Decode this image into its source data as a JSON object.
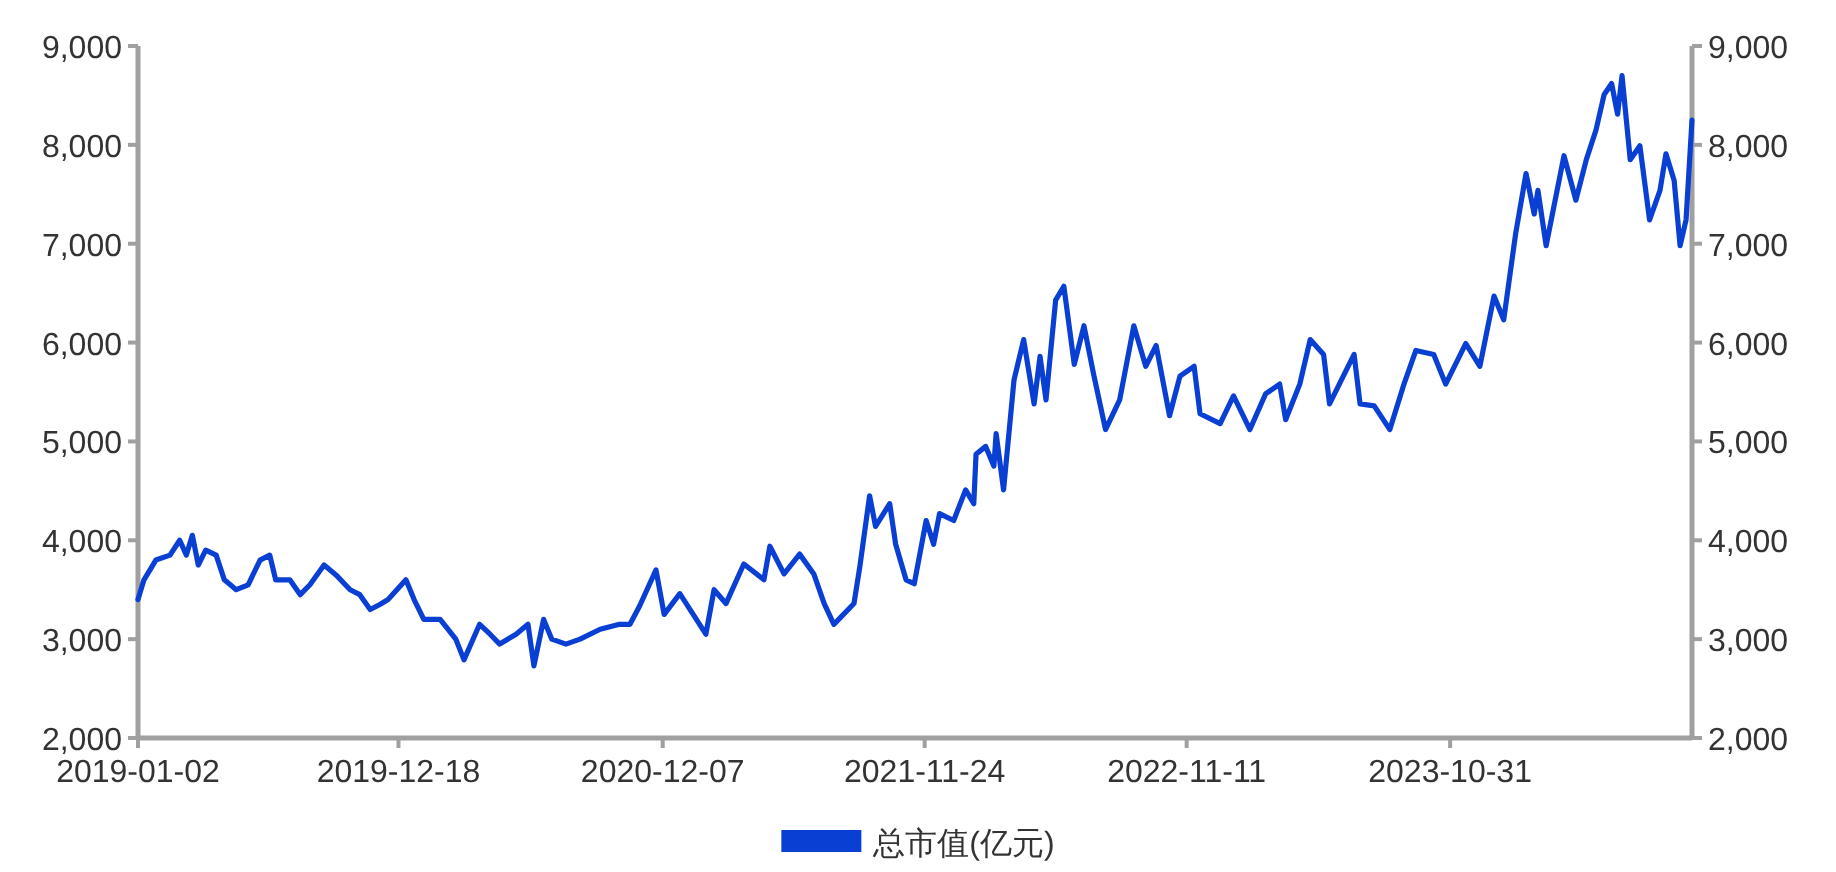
{
  "chart_data": {
    "type": "line",
    "legend": "bottom",
    "grid": false,
    "marker": "none",
    "line_style": "solid",
    "xlim": [
      "2019-01-02",
      "2024-09-20"
    ],
    "xticks": [
      "2019-01-02",
      "2019-12-18",
      "2020-12-07",
      "2021-11-24",
      "2022-11-11",
      "2023-10-31"
    ],
    "ylim": [
      2000,
      9000
    ],
    "yticks": [
      {
        "value": 2000,
        "label": "2,000"
      },
      {
        "value": 3000,
        "label": "3,000"
      },
      {
        "value": 4000,
        "label": "4,000"
      },
      {
        "value": 5000,
        "label": "5,000"
      },
      {
        "value": 6000,
        "label": "6,000"
      },
      {
        "value": 7000,
        "label": "7,000"
      },
      {
        "value": 8000,
        "label": "8,000"
      },
      {
        "value": 9000,
        "label": "9,000"
      }
    ],
    "y2lim": [
      2000,
      9000
    ],
    "y2ticks": [
      {
        "value": 2000,
        "label": "2,000"
      },
      {
        "value": 3000,
        "label": "3,000"
      },
      {
        "value": 4000,
        "label": "4,000"
      },
      {
        "value": 5000,
        "label": "5,000"
      },
      {
        "value": 6000,
        "label": "6,000"
      },
      {
        "value": 7000,
        "label": "7,000"
      },
      {
        "value": 8000,
        "label": "8,000"
      },
      {
        "value": 9000,
        "label": "9,000"
      }
    ],
    "series": [
      {
        "name": "总市值(亿元)",
        "color": "#0a3fd4",
        "x": [
          "2019-01-02",
          "2019-01-10",
          "2019-01-26",
          "2019-02-14",
          "2019-02-27",
          "2019-03-08",
          "2019-03-16",
          "2019-03-24",
          "2019-04-03",
          "2019-04-17",
          "2019-04-28",
          "2019-05-14",
          "2019-05-30",
          "2019-06-15",
          "2019-06-28",
          "2019-07-06",
          "2019-07-25",
          "2019-08-08",
          "2019-08-21",
          "2019-09-09",
          "2019-09-25",
          "2019-10-14",
          "2019-10-27",
          "2019-11-10",
          "2019-11-23",
          "2019-12-04",
          "2019-12-28",
          "2020-01-08",
          "2020-01-21",
          "2020-02-12",
          "2020-03-04",
          "2020-03-15",
          "2020-04-05",
          "2020-04-19",
          "2020-05-02",
          "2020-05-24",
          "2020-06-09",
          "2020-06-17",
          "2020-06-30",
          "2020-07-11",
          "2020-07-30",
          "2020-08-18",
          "2020-09-14",
          "2020-10-10",
          "2020-10-24",
          "2020-11-06",
          "2020-11-28",
          "2020-12-09",
          "2020-12-30",
          "2021-02-03",
          "2021-02-14",
          "2021-03-02",
          "2021-03-26",
          "2021-04-22",
          "2021-04-30",
          "2021-05-19",
          "2021-06-09",
          "2021-06-28",
          "2021-07-12",
          "2021-07-25",
          "2021-08-21",
          "2021-08-29",
          "2021-09-11",
          "2021-09-19",
          "2021-10-08",
          "2021-10-16",
          "2021-10-30",
          "2021-11-10",
          "2021-11-26",
          "2021-12-06",
          "2021-12-14",
          "2022-01-02",
          "2022-01-18",
          "2022-01-29",
          "2022-02-01",
          "2022-02-14",
          "2022-02-25",
          "2022-02-28",
          "2022-03-10",
          "2022-03-24",
          "2022-04-06",
          "2022-04-20",
          "2022-04-28",
          "2022-05-06",
          "2022-05-19",
          "2022-05-30",
          "2022-06-13",
          "2022-06-26",
          "2022-07-09",
          "2022-07-25",
          "2022-08-13",
          "2022-09-01",
          "2022-09-17",
          "2022-10-01",
          "2022-10-19",
          "2022-11-02",
          "2022-11-21",
          "2022-11-29",
          "2022-12-26",
          "2023-01-13",
          "2023-02-04",
          "2023-02-25",
          "2023-03-16",
          "2023-03-24",
          "2023-04-12",
          "2023-04-26",
          "2023-05-14",
          "2023-05-22",
          "2023-06-24",
          "2023-07-02",
          "2023-07-21",
          "2023-08-11",
          "2023-08-30",
          "2023-09-15",
          "2023-10-09",
          "2023-10-25",
          "2023-11-21",
          "2023-12-10",
          "2023-12-29",
          "2024-01-11",
          "2024-01-27",
          "2024-02-10",
          "2024-02-21",
          "2024-02-26",
          "2024-03-08",
          "2024-04-01",
          "2024-04-17",
          "2024-05-01",
          "2024-05-14",
          "2024-05-25",
          "2024-06-04",
          "2024-06-12",
          "2024-06-18",
          "2024-06-29",
          "2024-07-12",
          "2024-07-25",
          "2024-08-08",
          "2024-08-16",
          "2024-08-27",
          "2024-09-04",
          "2024-09-12",
          "2024-09-20"
        ],
        "values": [
          3400,
          3600,
          3800,
          3850,
          4000,
          3850,
          4050,
          3750,
          3900,
          3850,
          3600,
          3500,
          3550,
          3800,
          3850,
          3600,
          3600,
          3450,
          3550,
          3750,
          3650,
          3500,
          3450,
          3300,
          3350,
          3400,
          3600,
          3400,
          3200,
          3200,
          3000,
          2790,
          3150,
          3050,
          2950,
          3050,
          3150,
          2730,
          3200,
          3000,
          2950,
          3000,
          3100,
          3150,
          3150,
          3335,
          3700,
          3250,
          3460,
          3050,
          3500,
          3360,
          3760,
          3600,
          3940,
          3660,
          3860,
          3660,
          3360,
          3150,
          3360,
          3740,
          4450,
          4140,
          4370,
          3960,
          3600,
          3560,
          4200,
          3960,
          4270,
          4200,
          4510,
          4370,
          4870,
          4950,
          4750,
          5080,
          4510,
          5620,
          6030,
          5380,
          5860,
          5420,
          6430,
          6570,
          5780,
          6170,
          5680,
          5120,
          5420,
          6170,
          5760,
          5970,
          5260,
          5660,
          5760,
          5280,
          5180,
          5460,
          5120,
          5480,
          5580,
          5220,
          5580,
          6030,
          5880,
          5380,
          5880,
          5380,
          5360,
          5120,
          5580,
          5920,
          5880,
          5580,
          5990,
          5760,
          6470,
          6230,
          7100,
          7710,
          7300,
          7540,
          6980,
          7890,
          7440,
          7850,
          8150,
          8510,
          8620,
          8310,
          8700,
          7850,
          7990,
          7240,
          7540,
          7910,
          7640,
          6980,
          7240,
          8250
        ]
      }
    ]
  }
}
